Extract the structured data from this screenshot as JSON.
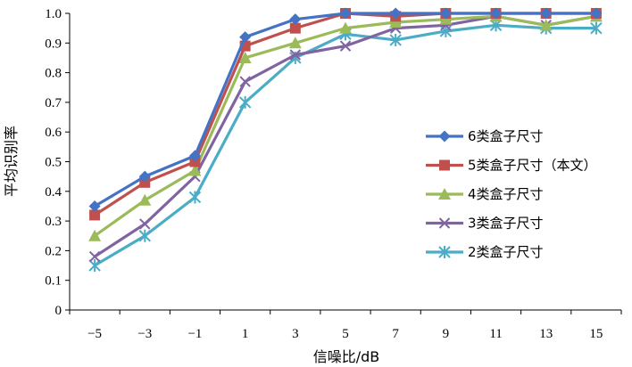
{
  "chart_data": {
    "type": "line",
    "title": "",
    "xlabel": "信噪比/dB",
    "ylabel": "平均识别率",
    "categories": [
      "−5",
      "−3",
      "−1",
      "1",
      "3",
      "5",
      "7",
      "9",
      "11",
      "13",
      "15"
    ],
    "x": [
      -5,
      -3,
      -1,
      1,
      3,
      5,
      7,
      9,
      11,
      13,
      15
    ],
    "ylim": [
      0,
      1.0
    ],
    "yticks": [
      "0",
      "0.1",
      "0.2",
      "0.3",
      "0.4",
      "0.5",
      "0.6",
      "0.7",
      "0.8",
      "0.9",
      "1.0"
    ],
    "grid": false,
    "legend_position": "right",
    "series": [
      {
        "name": "6类盒子尺寸",
        "color": "#4472C4",
        "marker": "diamond",
        "values": [
          0.35,
          0.45,
          0.52,
          0.92,
          0.98,
          1.0,
          1.0,
          1.0,
          1.0,
          1.0,
          1.0
        ]
      },
      {
        "name": "5类盒子尺寸（本文）",
        "color": "#C0504D",
        "marker": "square",
        "values": [
          0.32,
          0.43,
          0.5,
          0.89,
          0.95,
          1.0,
          0.99,
          1.0,
          1.0,
          1.0,
          1.0
        ]
      },
      {
        "name": "4类盒子尺寸",
        "color": "#9BBB59",
        "marker": "triangle",
        "values": [
          0.25,
          0.37,
          0.47,
          0.85,
          0.9,
          0.95,
          0.97,
          0.98,
          0.99,
          0.96,
          0.99
        ]
      },
      {
        "name": "3类盒子尺寸",
        "color": "#8064A2",
        "marker": "x",
        "values": [
          0.18,
          0.29,
          0.45,
          0.77,
          0.86,
          0.89,
          0.95,
          0.96,
          0.99,
          0.96,
          0.99
        ]
      },
      {
        "name": "2类盒子尺寸",
        "color": "#4BACC6",
        "marker": "star",
        "values": [
          0.15,
          0.25,
          0.38,
          0.7,
          0.85,
          0.93,
          0.91,
          0.94,
          0.96,
          0.95,
          0.95
        ]
      }
    ]
  }
}
